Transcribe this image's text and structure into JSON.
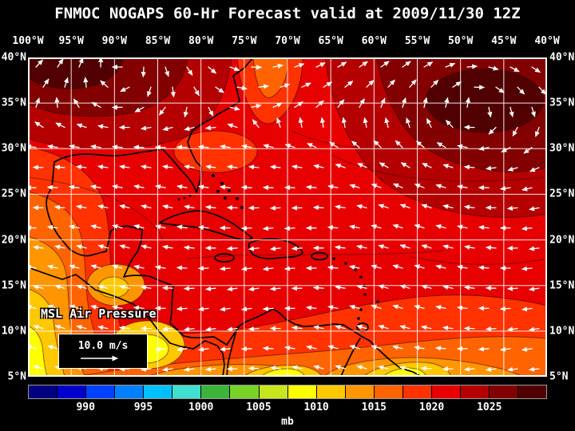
{
  "title": "FNMOC NOGAPS 60-Hr Forecast valid at 2009/11/30 12Z",
  "map": {
    "layer_label": "MSL Air Pressure",
    "wind_legend_label": "10.0 m/s",
    "lon_labels": [
      "100°W",
      "95°W",
      "90°W",
      "85°W",
      "80°W",
      "75°W",
      "70°W",
      "65°W",
      "60°W",
      "55°W",
      "50°W",
      "45°W",
      "40°W"
    ],
    "lat_labels": [
      "40°N",
      "35°N",
      "30°N",
      "25°N",
      "20°N",
      "15°N",
      "10°N",
      "5°N"
    ],
    "grid_color": "#ffffff",
    "coastline_color": "#000000",
    "wind_arrow_color": "#ffffff",
    "background_color": "#000000"
  },
  "colorbar": {
    "unit": "mb",
    "tick_labels": [
      "990",
      "995",
      "1000",
      "1005",
      "1010",
      "1015",
      "1020",
      "1025"
    ],
    "min_mb": 985,
    "max_mb": 1030,
    "step_mb": 2.5,
    "colors": [
      "#000080",
      "#0000cd",
      "#0040ff",
      "#0080ff",
      "#00c0ff",
      "#40e0d0",
      "#3cb43c",
      "#78d228",
      "#c8e61e",
      "#ffff00",
      "#ffc800",
      "#ff9600",
      "#ff6400",
      "#ff3200",
      "#e60000",
      "#b40000",
      "#820000",
      "#500000"
    ]
  }
}
